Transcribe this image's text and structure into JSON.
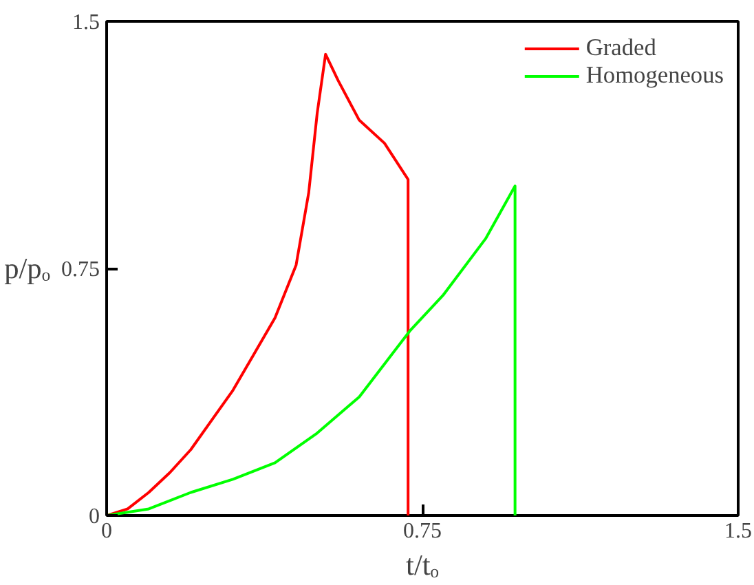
{
  "chart_data": {
    "type": "line",
    "xlabel": "t/tₒ",
    "ylabel": "p/pₒ",
    "xlim": [
      0,
      1.5
    ],
    "ylim": [
      0,
      1.5
    ],
    "xticks": [
      0,
      0.75,
      1.5
    ],
    "yticks": [
      0,
      0.75,
      1.5
    ],
    "grid": false,
    "legend": "top right",
    "marker": "none",
    "line_style": "solid",
    "series": [
      {
        "name": "Graded",
        "color": "#ff0000",
        "x": [
          0,
          0.05,
          0.1,
          0.15,
          0.2,
          0.25,
          0.3,
          0.35,
          0.4,
          0.45,
          0.48,
          0.5,
          0.52,
          0.55,
          0.6,
          0.66,
          0.716,
          0.716
        ],
        "values": [
          0,
          0.02,
          0.07,
          0.13,
          0.2,
          0.29,
          0.38,
          0.49,
          0.6,
          0.76,
          0.98,
          1.22,
          1.4,
          1.32,
          1.2,
          1.13,
          1.02,
          0
        ]
      },
      {
        "name": "Homogeneous",
        "color": "#00ff00",
        "x": [
          0,
          0.1,
          0.2,
          0.3,
          0.4,
          0.5,
          0.6,
          0.72,
          0.8,
          0.9,
          0.97,
          0.97
        ],
        "values": [
          0,
          0.02,
          0.07,
          0.11,
          0.16,
          0.25,
          0.36,
          0.56,
          0.67,
          0.84,
          1.0,
          0
        ]
      }
    ]
  }
}
